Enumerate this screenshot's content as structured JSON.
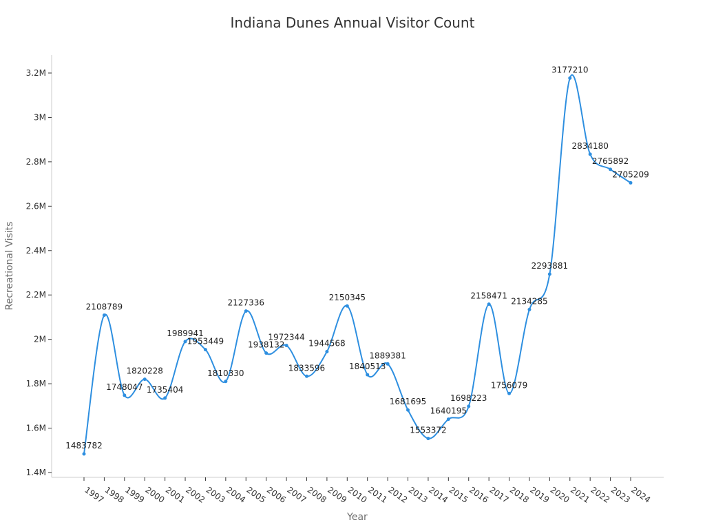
{
  "chart_data": {
    "type": "line",
    "title": "Indiana Dunes Annual Visitor Count",
    "xlabel": "Year",
    "ylabel": "Recreational Visits",
    "x": [
      "1997",
      "1998",
      "1999",
      "2000",
      "2001",
      "2002",
      "2003",
      "2004",
      "2005",
      "2006",
      "2007",
      "2008",
      "2009",
      "2010",
      "2011",
      "2012",
      "2013",
      "2014",
      "2015",
      "2016",
      "2017",
      "2018",
      "2019",
      "2020",
      "2021",
      "2022",
      "2023",
      "2024"
    ],
    "series": [
      {
        "values": [
          1483782,
          2108789,
          1748047,
          1820228,
          1735404,
          1989941,
          1953449,
          1810330,
          2127336,
          1938132,
          1972344,
          1833596,
          1944568,
          2150345,
          1840513,
          1889381,
          1681695,
          1553372,
          1640195,
          1698223,
          2158471,
          1756079,
          2134285,
          2293881,
          3177210,
          2834180,
          2765892,
          2705209
        ],
        "color": "#2e8fe0"
      }
    ],
    "ylim": [
      1400000,
      3250000
    ],
    "yticks": [
      1400000,
      1600000,
      1800000,
      2000000,
      2200000,
      2400000,
      2600000,
      2800000,
      3000000,
      3200000
    ],
    "ytick_labels": [
      "1.4M",
      "1.6M",
      "1.8M",
      "2M",
      "2.2M",
      "2.4M",
      "2.6M",
      "2.8M",
      "3M",
      "3.2M"
    ],
    "data_labels": true,
    "grid": false,
    "smooth": true
  }
}
